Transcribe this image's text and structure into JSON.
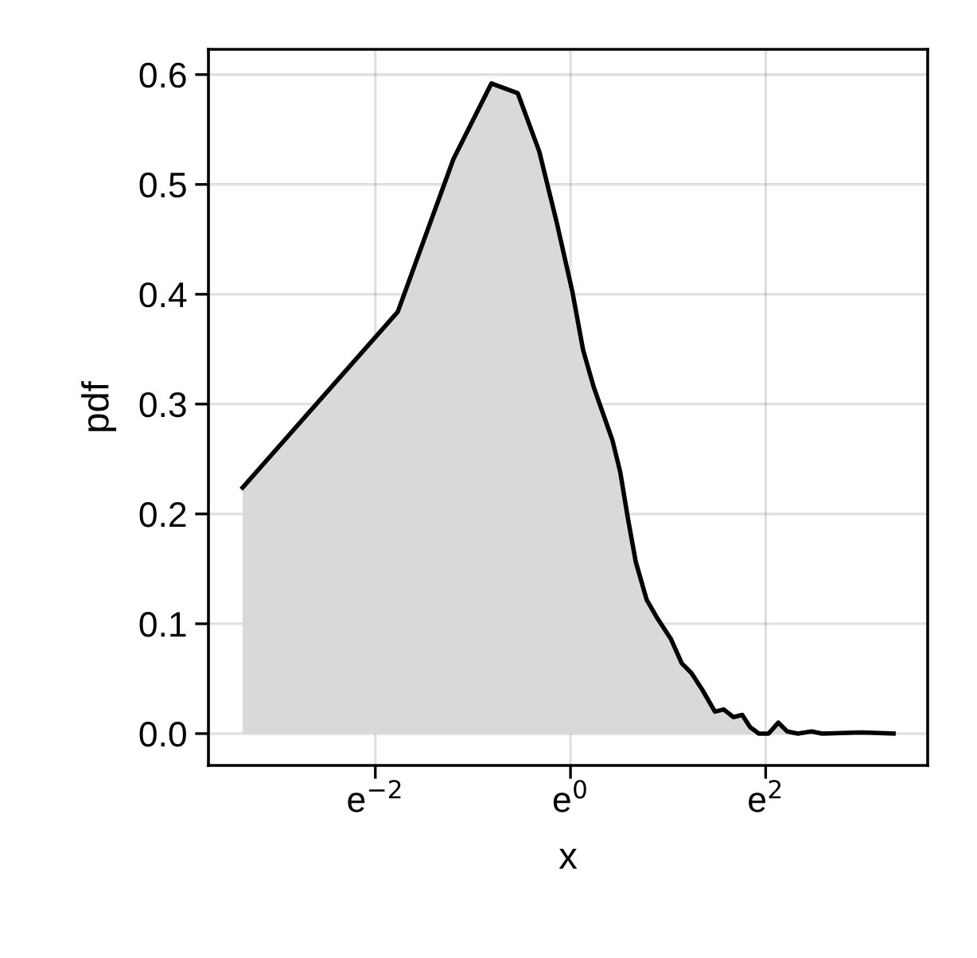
{
  "chart_data": {
    "type": "area",
    "xlabel": "x",
    "ylabel": "pdf",
    "grid": true,
    "x": [
      -3.36,
      -1.77,
      -1.2,
      -0.81,
      -0.54,
      -0.32,
      -0.14,
      0.02,
      0.13,
      0.24,
      0.43,
      0.51,
      0.59,
      0.67,
      0.78,
      0.89,
      1.03,
      1.14,
      1.24,
      1.35,
      1.48,
      1.57,
      1.67,
      1.76,
      1.84,
      1.93,
      2.03,
      2.13,
      2.22,
      2.33,
      2.47,
      2.58,
      2.98,
      3.31
    ],
    "series": [
      {
        "color": "#000000",
        "values": [
          0.224,
          0.384,
          0.523,
          0.592,
          0.583,
          0.53,
          0.465,
          0.402,
          0.349,
          0.315,
          0.267,
          0.238,
          0.195,
          0.156,
          0.122,
          0.105,
          0.086,
          0.064,
          0.055,
          0.04,
          0.02,
          0.022,
          0.015,
          0.017,
          0.006,
          0.0,
          0.0,
          0.01,
          0.002,
          0.0,
          0.002,
          0.0,
          0.001,
          0.0
        ]
      }
    ],
    "xlim": [
      -3.71,
      3.66
    ],
    "xticks": [
      {
        "value": -2,
        "label": "e$^{−2}$"
      },
      {
        "value": 0,
        "label": "e$^{0}$"
      },
      {
        "value": 2,
        "label": "e$^{2}$"
      }
    ],
    "ylim": [
      -0.029,
      0.623
    ],
    "yticks": [
      {
        "value": 0,
        "label": "0.0"
      },
      {
        "value": 0.1,
        "label": "0.1"
      },
      {
        "value": 0.2,
        "label": "0.2"
      },
      {
        "value": 0.3,
        "label": "0.3"
      },
      {
        "value": 0.4,
        "label": "0.4"
      },
      {
        "value": 0.5,
        "label": "0.5"
      },
      {
        "value": 0.6,
        "label": "0.6"
      }
    ]
  }
}
